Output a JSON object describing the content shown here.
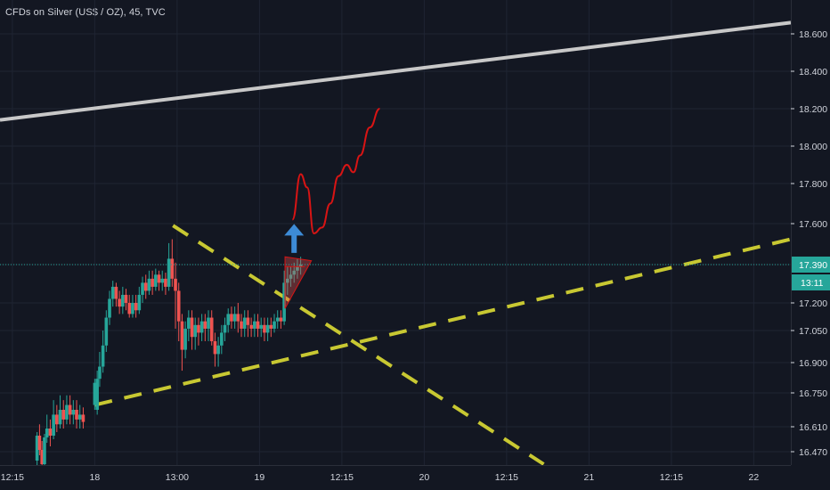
{
  "header": {
    "title": "CFDs on Silver (US$ / OZ), 45, TVC"
  },
  "colors": {
    "background": "#131722",
    "grid": "#1f2433",
    "up": "#26a69a",
    "down": "#ef5350",
    "axis_text": "#d1d4dc",
    "trend_yellow": "#c8c832",
    "trend_white": "#c8c8c8",
    "forecast_red": "#d81414",
    "arrow": "#3d8bd6",
    "price_badge": "#26a69a"
  },
  "chart_data": {
    "type": "candlestick",
    "title": "CFDs on Silver (US$ / OZ), 45, TVC",
    "y_ticks": [
      "16.470",
      "16.610",
      "16.750",
      "16.900",
      "17.050",
      "17.200",
      "17.390",
      "17.600",
      "17.800",
      "18.000",
      "18.200",
      "18.400",
      "18.600"
    ],
    "y_tick_values": [
      16.47,
      16.61,
      16.75,
      16.9,
      17.05,
      17.2,
      17.39,
      17.6,
      17.8,
      18.0,
      18.2,
      18.4,
      18.6
    ],
    "x_ticks": [
      "12:15",
      "18",
      "13:00",
      "19",
      "12:15",
      "20",
      "12:15",
      "21",
      "12:15",
      "22"
    ],
    "x_tick_positions": [
      0,
      1,
      2,
      3,
      4,
      5,
      6,
      7,
      8,
      9
    ],
    "x_range": [
      -0.15,
      9.45
    ],
    "current_price": {
      "value": 17.39,
      "label": "17.390",
      "countdown": "13:11"
    },
    "candles": [
      [
        0.3,
        16.42,
        16.56,
        16.35,
        16.58
      ],
      [
        0.33,
        16.56,
        16.48,
        16.45,
        16.62
      ],
      [
        0.36,
        16.48,
        16.4,
        16.36,
        16.53
      ],
      [
        0.39,
        16.4,
        16.55,
        16.38,
        16.57
      ],
      [
        0.42,
        16.55,
        16.6,
        16.52,
        16.66
      ],
      [
        0.46,
        16.6,
        16.56,
        16.5,
        16.64
      ],
      [
        0.5,
        16.56,
        16.66,
        16.54,
        16.72
      ],
      [
        0.54,
        16.66,
        16.62,
        16.58,
        16.7
      ],
      [
        0.58,
        16.62,
        16.68,
        16.6,
        16.74
      ],
      [
        0.62,
        16.68,
        16.64,
        16.6,
        16.72
      ],
      [
        0.66,
        16.64,
        16.7,
        16.62,
        16.74
      ],
      [
        0.7,
        16.7,
        16.66,
        16.62,
        16.74
      ],
      [
        0.74,
        16.66,
        16.68,
        16.62,
        16.72
      ],
      [
        0.78,
        16.68,
        16.64,
        16.6,
        16.72
      ],
      [
        0.82,
        16.64,
        16.66,
        16.6,
        16.7
      ],
      [
        0.86,
        16.66,
        16.63,
        16.6,
        16.69
      ],
      [
        1.0,
        16.7,
        16.8,
        16.68,
        16.82
      ],
      [
        1.03,
        16.68,
        16.82,
        16.66,
        16.86
      ],
      [
        1.06,
        16.82,
        16.88,
        16.78,
        16.95
      ],
      [
        1.1,
        16.88,
        16.98,
        16.85,
        17.05
      ],
      [
        1.14,
        16.98,
        17.12,
        16.95,
        17.16
      ],
      [
        1.18,
        17.12,
        17.22,
        17.08,
        17.26
      ],
      [
        1.22,
        17.22,
        17.28,
        17.18,
        17.31
      ],
      [
        1.26,
        17.28,
        17.22,
        17.18,
        17.3
      ],
      [
        1.3,
        17.22,
        17.18,
        17.14,
        17.26
      ],
      [
        1.34,
        17.18,
        17.24,
        17.14,
        17.28
      ],
      [
        1.38,
        17.24,
        17.2,
        17.16,
        17.27
      ],
      [
        1.42,
        17.2,
        17.14,
        17.12,
        17.24
      ],
      [
        1.46,
        17.14,
        17.2,
        17.12,
        17.24
      ],
      [
        1.5,
        17.2,
        17.16,
        17.12,
        17.24
      ],
      [
        1.54,
        17.16,
        17.24,
        17.14,
        17.28
      ],
      [
        1.58,
        17.24,
        17.3,
        17.2,
        17.33
      ],
      [
        1.62,
        17.3,
        17.26,
        17.22,
        17.34
      ],
      [
        1.66,
        17.26,
        17.32,
        17.24,
        17.36
      ],
      [
        1.7,
        17.32,
        17.28,
        17.24,
        17.36
      ],
      [
        1.74,
        17.28,
        17.34,
        17.26,
        17.37
      ],
      [
        1.78,
        17.34,
        17.3,
        17.26,
        17.36
      ],
      [
        1.82,
        17.3,
        17.32,
        17.26,
        17.36
      ],
      [
        1.86,
        17.32,
        17.28,
        17.24,
        17.35
      ],
      [
        1.9,
        17.28,
        17.42,
        17.26,
        17.5
      ],
      [
        1.94,
        17.42,
        17.32,
        17.28,
        17.52
      ],
      [
        1.98,
        17.32,
        17.26,
        17.06,
        17.4
      ],
      [
        2.02,
        17.26,
        17.1,
        17.0,
        17.3
      ],
      [
        2.06,
        17.1,
        16.96,
        16.86,
        17.14
      ],
      [
        2.1,
        16.96,
        17.06,
        16.92,
        17.1
      ],
      [
        2.14,
        17.06,
        17.12,
        17.0,
        17.16
      ],
      [
        2.18,
        17.12,
        17.02,
        16.96,
        17.16
      ],
      [
        2.22,
        17.02,
        17.08,
        16.96,
        17.12
      ],
      [
        2.26,
        17.08,
        17.04,
        16.98,
        17.12
      ],
      [
        2.3,
        17.04,
        17.1,
        17.0,
        17.14
      ],
      [
        2.34,
        17.1,
        17.06,
        17.0,
        17.14
      ],
      [
        2.38,
        17.06,
        17.12,
        17.0,
        17.16
      ],
      [
        2.42,
        17.12,
        17.0,
        16.98,
        17.16
      ],
      [
        2.46,
        17.0,
        16.94,
        16.88,
        17.04
      ],
      [
        2.5,
        16.94,
        16.98,
        16.88,
        17.02
      ],
      [
        2.54,
        16.98,
        17.04,
        16.94,
        17.08
      ],
      [
        2.58,
        17.04,
        17.08,
        17.0,
        17.12
      ],
      [
        2.62,
        17.08,
        17.14,
        17.04,
        17.17
      ],
      [
        2.66,
        17.14,
        17.1,
        17.06,
        17.18
      ],
      [
        2.7,
        17.1,
        17.14,
        17.06,
        17.18
      ],
      [
        2.74,
        17.14,
        17.1,
        17.04,
        17.2
      ],
      [
        2.78,
        17.1,
        17.06,
        17.02,
        17.14
      ],
      [
        2.82,
        17.06,
        17.12,
        17.02,
        17.16
      ],
      [
        2.86,
        17.12,
        17.08,
        17.02,
        17.16
      ],
      [
        2.9,
        17.08,
        17.06,
        17.02,
        17.12
      ],
      [
        2.94,
        17.06,
        17.1,
        17.02,
        17.14
      ],
      [
        2.98,
        17.1,
        17.06,
        17.02,
        17.14
      ],
      [
        3.02,
        17.06,
        17.08,
        17.02,
        17.12
      ],
      [
        3.06,
        17.08,
        17.04,
        17.0,
        17.12
      ],
      [
        3.1,
        17.04,
        17.08,
        17.0,
        17.12
      ],
      [
        3.14,
        17.08,
        17.06,
        17.02,
        17.12
      ],
      [
        3.18,
        17.06,
        17.1,
        17.04,
        17.14
      ],
      [
        3.22,
        17.1,
        17.12,
        17.06,
        17.16
      ],
      [
        3.26,
        17.12,
        17.1,
        17.06,
        17.16
      ],
      [
        3.3,
        17.1,
        17.3,
        17.08,
        17.36
      ],
      [
        3.34,
        17.3,
        17.32,
        17.24,
        17.38
      ],
      [
        3.38,
        17.32,
        17.34,
        17.28,
        17.38
      ],
      [
        3.42,
        17.34,
        17.36,
        17.3,
        17.4
      ],
      [
        3.46,
        17.36,
        17.38,
        17.32,
        17.42
      ],
      [
        3.5,
        17.38,
        17.39,
        17.34,
        17.43
      ]
    ],
    "trend_lines": [
      {
        "name": "",
        "style": "solid",
        "color": "#c8c8c8",
        "from": [
          -0.15,
          18.14
        ],
        "to": [
          9.45,
          18.66
        ]
      },
      {
        "name": "",
        "style": "dashed",
        "color": "#c8c832",
        "from": [
          1.0,
          16.7
        ],
        "to": [
          9.45,
          17.52
        ]
      },
      {
        "name": "",
        "style": "dashed",
        "color": "#c8c832",
        "from": [
          1.95,
          17.59
        ],
        "to": [
          6.45,
          16.4
        ]
      }
    ],
    "forecast_path": [
      [
        3.4,
        17.62
      ],
      [
        3.5,
        17.85
      ],
      [
        3.58,
        17.78
      ],
      [
        3.66,
        17.55
      ],
      [
        3.76,
        17.58
      ],
      [
        3.86,
        17.7
      ],
      [
        3.96,
        17.84
      ],
      [
        4.06,
        17.9
      ],
      [
        4.14,
        17.86
      ],
      [
        4.22,
        17.95
      ],
      [
        4.34,
        18.1
      ],
      [
        4.46,
        18.2
      ]
    ],
    "arrow": {
      "x": 3.42,
      "from": 17.45,
      "to": 17.58,
      "direction": "up"
    }
  }
}
